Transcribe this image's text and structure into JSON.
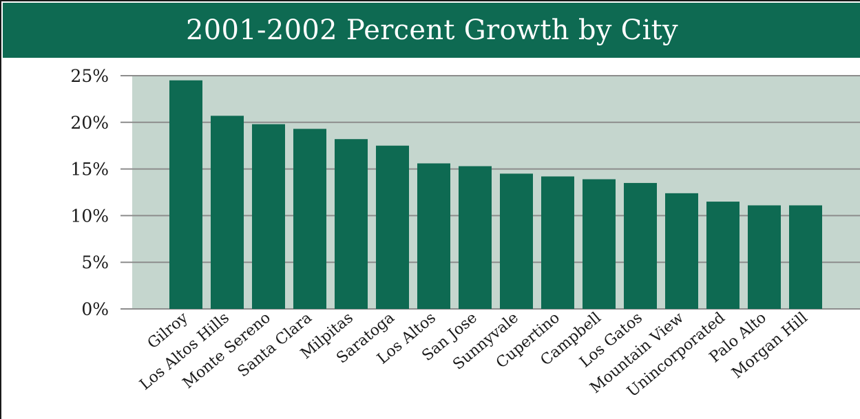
{
  "colors": {
    "title_background": "#0e6a52",
    "title_text": "#ffffff",
    "plot_background": "#c5d6ce",
    "bar": "#0e6a52",
    "gridline": "#8c8c8c",
    "axis_text": "#1a1a1a"
  },
  "chart_data": {
    "type": "bar",
    "title": "2001-2002 Percent Growth by City",
    "xlabel": "",
    "ylabel": "",
    "ylim": [
      0,
      25
    ],
    "y_ticks": [
      0,
      5,
      10,
      15,
      20,
      25
    ],
    "y_tick_labels": [
      "0%",
      "5%",
      "10%",
      "15%",
      "20%",
      "25%"
    ],
    "grid": true,
    "legend": "none",
    "categories": [
      "Gilroy",
      "Los Altos Hills",
      "Monte Sereno",
      "Santa Clara",
      "Milpitas",
      "Saratoga",
      "Los Altos",
      "San Jose",
      "Sunnyvale",
      "Cupertino",
      "Campbell",
      "Los Gatos",
      "Mountain View",
      "Unincorporated",
      "Palo Alto",
      "Morgan Hill"
    ],
    "values": [
      24.5,
      20.7,
      19.8,
      19.3,
      18.2,
      17.5,
      15.6,
      15.3,
      14.5,
      14.2,
      13.9,
      13.5,
      12.4,
      11.5,
      11.1,
      11.1
    ]
  }
}
